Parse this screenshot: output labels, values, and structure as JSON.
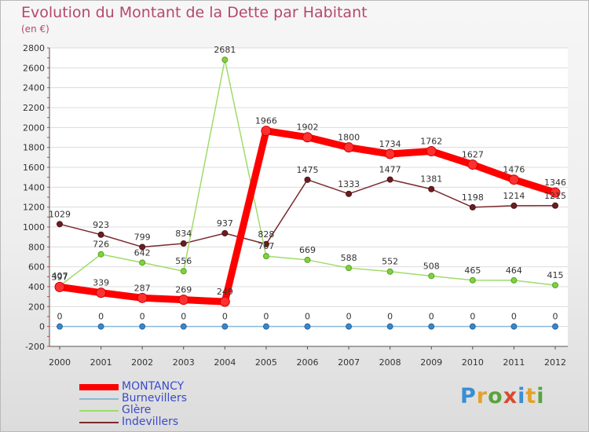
{
  "title": "Evolution du Montant de la Dette par Habitant",
  "subtitle": "(en €)",
  "logo": {
    "text": "Proxiti",
    "colors": [
      "#3a8ed3",
      "#e2a22c",
      "#5aa33c",
      "#d84a2d",
      "#3a8ed3",
      "#e2a22c",
      "#5aa33c"
    ]
  },
  "chart_data": {
    "type": "line",
    "x": [
      "2000",
      "2001",
      "2002",
      "2003",
      "2004",
      "2005",
      "2006",
      "2007",
      "2008",
      "2009",
      "2010",
      "2011",
      "2012"
    ],
    "ylim": [
      -200,
      2800
    ],
    "yticks": [
      -200,
      0,
      200,
      400,
      600,
      800,
      1000,
      1200,
      1400,
      1600,
      1800,
      2000,
      2200,
      2400,
      2600,
      2800
    ],
    "grid": "horizontal",
    "legend_position": "bottom-left",
    "series": [
      {
        "name": "Indevillers",
        "color": "#7a2a2f",
        "values": [
          1029,
          923,
          799,
          834,
          937,
          828,
          1475,
          1333,
          1477,
          1381,
          1198,
          1214,
          1215
        ]
      },
      {
        "name": "Glère",
        "color": "#9fdc6a",
        "values": [
          407,
          726,
          642,
          556,
          2681,
          707,
          669,
          588,
          552,
          508,
          465,
          464,
          415
        ]
      },
      {
        "name": "Burnevillers",
        "color": "#8bb8d8",
        "values": [
          0,
          0,
          0,
          0,
          0,
          0,
          0,
          0,
          0,
          0,
          0,
          0,
          0
        ]
      },
      {
        "name": "MONTANCY",
        "color": "#ff0000",
        "values": [
          397,
          339,
          287,
          269,
          249,
          1966,
          1902,
          1800,
          1734,
          1762,
          1627,
          1476,
          1346
        ]
      }
    ],
    "legend": [
      "MONTANCY",
      "Burnevillers",
      "Glère",
      "Indevillers"
    ]
  }
}
